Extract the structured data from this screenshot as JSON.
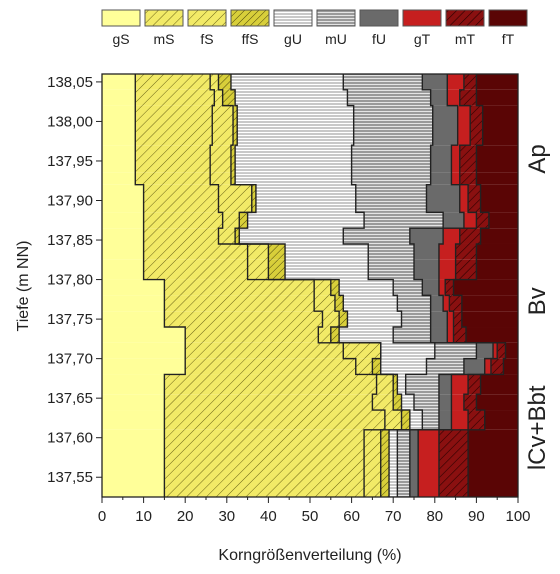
{
  "chart_data": {
    "type": "area",
    "orientation": "horizontal-stacked",
    "xlabel": "Korngrößenverteilung (%)",
    "ylabel": "Tiefe (m NN)",
    "xlim": [
      0,
      100
    ],
    "ylim": [
      137.525,
      138.06
    ],
    "x_ticks": [
      0,
      10,
      20,
      30,
      40,
      50,
      60,
      70,
      80,
      90,
      100
    ],
    "y_ticks": [
      "138,05",
      "138,00",
      "137,95",
      "137,90",
      "137,85",
      "137,80",
      "137,75",
      "137,70",
      "137,65",
      "137,60",
      "137,55"
    ],
    "y_tick_values": [
      138.05,
      138.0,
      137.95,
      137.9,
      137.85,
      137.8,
      137.75,
      137.7,
      137.65,
      137.6,
      137.55
    ],
    "depth_top": 138.06,
    "depth_bottom": 137.525,
    "depth_intervals": [
      {
        "top": 138.06,
        "bottom": 138.04
      },
      {
        "top": 138.04,
        "bottom": 138.02
      },
      {
        "top": 138.02,
        "bottom": 137.97
      },
      {
        "top": 137.97,
        "bottom": 137.935
      },
      {
        "top": 137.935,
        "bottom": 137.92
      },
      {
        "top": 137.92,
        "bottom": 137.885
      },
      {
        "top": 137.885,
        "bottom": 137.865
      },
      {
        "top": 137.865,
        "bottom": 137.845
      },
      {
        "top": 137.845,
        "bottom": 137.825
      },
      {
        "top": 137.825,
        "bottom": 137.8
      },
      {
        "top": 137.8,
        "bottom": 137.78
      },
      {
        "top": 137.78,
        "bottom": 137.76
      },
      {
        "top": 137.76,
        "bottom": 137.74
      },
      {
        "top": 137.74,
        "bottom": 137.72
      },
      {
        "top": 137.72,
        "bottom": 137.7
      },
      {
        "top": 137.7,
        "bottom": 137.68
      },
      {
        "top": 137.68,
        "bottom": 137.655
      },
      {
        "top": 137.655,
        "bottom": 137.635
      },
      {
        "top": 137.635,
        "bottom": 137.61
      },
      {
        "top": 137.61,
        "bottom": 137.525
      }
    ],
    "series": [
      {
        "name": "gS",
        "color": "#ffff99",
        "pattern": "none",
        "values": [
          8,
          8,
          8,
          8,
          8,
          10,
          10,
          10,
          10,
          10,
          15,
          15,
          15,
          20,
          20,
          20,
          15,
          15,
          15,
          15
        ]
      },
      {
        "name": "mS",
        "color": "#f2ea67",
        "pattern": "hatch",
        "values": [
          18,
          19,
          18.5,
          18,
          18,
          18,
          19,
          18,
          25,
          25,
          36,
          36,
          38,
          32,
          38,
          41,
          51,
          50,
          53,
          48
        ]
      },
      {
        "name": "fS",
        "color": "#f2ea67",
        "pattern": "hatch",
        "values": [
          2,
          2,
          5,
          5,
          5,
          8,
          4,
          4,
          5,
          5,
          4,
          5,
          4,
          3,
          9,
          4,
          4,
          5,
          4,
          4
        ]
      },
      {
        "name": "ffS",
        "color": "#d8cf3a",
        "pattern": "hatch",
        "values": [
          3,
          3,
          1,
          1,
          1,
          1,
          2,
          1,
          4,
          4,
          2,
          2,
          2,
          2,
          0,
          2,
          1,
          2,
          2,
          2
        ]
      },
      {
        "name": "gU",
        "color": "#c8c8c8",
        "pattern": "lines",
        "values": [
          27,
          27,
          28,
          28,
          28,
          24,
          28,
          25,
          20,
          20,
          13,
          13,
          13,
          13,
          13,
          11,
          2,
          3,
          3,
          2
        ]
      },
      {
        "name": "mU",
        "color": "#9a9a9a",
        "pattern": "lines",
        "values": [
          19,
          20,
          19,
          19,
          19,
          17,
          19,
          16,
          11,
          11,
          7,
          8,
          7,
          9,
          10,
          9,
          8,
          6,
          4,
          3
        ]
      },
      {
        "name": "fU",
        "color": "#6a6a6a",
        "pattern": "none",
        "values": [
          6,
          4,
          6,
          5,
          5,
          8,
          5,
          8,
          6,
          6,
          4,
          3,
          4,
          4,
          4,
          5,
          3,
          3,
          3,
          2
        ]
      },
      {
        "name": "gT",
        "color": "#c61f1f",
        "pattern": "none",
        "values": [
          4,
          3,
          3,
          2,
          2,
          2,
          3,
          4,
          4,
          4,
          1.5,
          1.5,
          1.5,
          1.5,
          1,
          1.5,
          4,
          3,
          4,
          5
        ]
      },
      {
        "name": "mT",
        "color": "#7e0f0f",
        "pattern": "hatch",
        "values": [
          3,
          4,
          3,
          4,
          4,
          3,
          3,
          5,
          5,
          5,
          2,
          3,
          2,
          3,
          2,
          3,
          3,
          3,
          4,
          7
        ]
      },
      {
        "name": "fT",
        "color": "#5a0505",
        "pattern": "none",
        "values": [
          10,
          10,
          8.5,
          10,
          10,
          9,
          7,
          9,
          10,
          10,
          15.5,
          13.5,
          13.5,
          12.5,
          3,
          3.5,
          9,
          10,
          8,
          12
        ]
      }
    ],
    "horizons": [
      {
        "label": "Ap",
        "top": 138.06,
        "bottom": 137.845
      },
      {
        "label": "Bv",
        "top": 137.845,
        "bottom": 137.7
      },
      {
        "label": "lCv+Bbt",
        "top": 137.7,
        "bottom": 137.525
      }
    ],
    "legend": {
      "placement": "top",
      "entries": [
        "gS",
        "mS",
        "fS",
        "ffS",
        "gU",
        "mU",
        "fU",
        "gT",
        "mT",
        "fT"
      ]
    },
    "grid": false
  }
}
